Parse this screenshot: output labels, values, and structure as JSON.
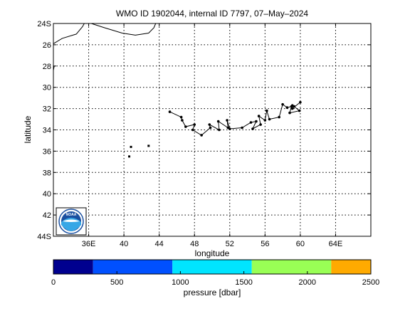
{
  "chart_data": {
    "type": "scatter",
    "title": "WMO ID 1902044, internal ID 7797, 07–May–2024",
    "xlabel": "longitude",
    "ylabel": "latitude",
    "xlim": [
      32,
      68
    ],
    "ylim": [
      -44,
      -24
    ],
    "grid": true,
    "x_ticks": [
      {
        "value": 36,
        "label": "36E"
      },
      {
        "value": 40,
        "label": "40"
      },
      {
        "value": 44,
        "label": "44"
      },
      {
        "value": 48,
        "label": "48"
      },
      {
        "value": 52,
        "label": "52"
      },
      {
        "value": 56,
        "label": "56"
      },
      {
        "value": 60,
        "label": "60"
      },
      {
        "value": 64,
        "label": "64E"
      }
    ],
    "y_ticks": [
      {
        "value": -24,
        "label": "24S"
      },
      {
        "value": -26,
        "label": "26"
      },
      {
        "value": -28,
        "label": "28"
      },
      {
        "value": -30,
        "label": "30"
      },
      {
        "value": -32,
        "label": "32"
      },
      {
        "value": -34,
        "label": "34"
      },
      {
        "value": -36,
        "label": "36"
      },
      {
        "value": -38,
        "label": "38"
      },
      {
        "value": -40,
        "label": "40"
      },
      {
        "value": -42,
        "label": "42"
      },
      {
        "value": -44,
        "label": "44S"
      }
    ],
    "track": [
      [
        45.2,
        -32.3
      ],
      [
        46.5,
        -32.8
      ],
      [
        46.6,
        -33.1
      ],
      [
        47.0,
        -33.7
      ],
      [
        48.0,
        -33.5
      ],
      [
        47.8,
        -34.0
      ],
      [
        48.8,
        -34.5
      ],
      [
        49.8,
        -33.8
      ],
      [
        49.7,
        -33.5
      ],
      [
        50.8,
        -34.0
      ],
      [
        50.7,
        -33.2
      ],
      [
        51.8,
        -33.8
      ],
      [
        51.7,
        -33.1
      ],
      [
        52.0,
        -33.9
      ],
      [
        53.4,
        -33.8
      ],
      [
        54.4,
        -33.3
      ],
      [
        55.0,
        -33.2
      ],
      [
        54.6,
        -33.9
      ],
      [
        55.5,
        -33.5
      ],
      [
        55.3,
        -32.7
      ],
      [
        56.0,
        -33.1
      ],
      [
        56.2,
        -32.2
      ],
      [
        56.5,
        -33.0
      ],
      [
        57.6,
        -32.8
      ],
      [
        58.0,
        -31.6
      ],
      [
        58.5,
        -31.9
      ],
      [
        59.0,
        -31.8
      ],
      [
        58.8,
        -32.4
      ],
      [
        59.9,
        -32.2
      ],
      [
        59.3,
        -31.8
      ],
      [
        59.1,
        -31.7
      ],
      [
        59.1,
        -32.0
      ],
      [
        60.0,
        -31.4
      ]
    ],
    "isolated_points": [
      [
        40.6,
        -36.5
      ],
      [
        40.8,
        -35.6
      ],
      [
        42.8,
        -35.5
      ]
    ],
    "coastlines": [
      [
        [
          32.0,
          -25.9
        ],
        [
          33.0,
          -25.4
        ],
        [
          34.6,
          -25.0
        ],
        [
          35.3,
          -24.3
        ],
        [
          35.5,
          -24.0
        ]
      ],
      [
        [
          36.3,
          -24.0
        ],
        [
          37.8,
          -24.4
        ],
        [
          39.8,
          -24.9
        ],
        [
          41.3,
          -25.1
        ],
        [
          42.8,
          -24.9
        ],
        [
          43.4,
          -24.4
        ],
        [
          43.6,
          -24.0
        ]
      ],
      [
        [
          32.0,
          -28.4
        ],
        [
          32.1,
          -28.0
        ]
      ]
    ],
    "colorbar": {
      "label": "pressure [dbar]",
      "range": [
        0,
        2500
      ],
      "ticks": [
        0,
        500,
        1000,
        1500,
        2000,
        2500
      ],
      "bins": [
        {
          "from": 0,
          "to": 312.5,
          "color": "#00008f"
        },
        {
          "from": 312.5,
          "to": 937.5,
          "color": "#0050ff"
        },
        {
          "from": 937.5,
          "to": 1562.5,
          "color": "#00e5ff"
        },
        {
          "from": 1562.5,
          "to": 2187.5,
          "color": "#99ff55"
        },
        {
          "from": 2187.5,
          "to": 2500,
          "color": "#ffaa00"
        }
      ]
    },
    "logo": {
      "text": "NOAA",
      "color": "#1a4fa0"
    }
  }
}
